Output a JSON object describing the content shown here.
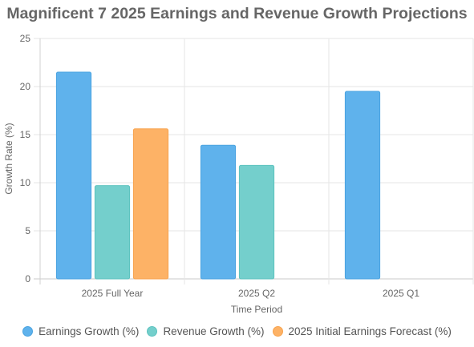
{
  "chart_data": {
    "type": "bar",
    "title": "Magnificent 7 2025 Earnings and Revenue Growth Projections",
    "xlabel": "Time Period",
    "ylabel": "Growth Rate (%)",
    "categories": [
      "2025 Full Year",
      "2025 Q2",
      "2025 Q1"
    ],
    "ylim": [
      0,
      25
    ],
    "yticks": [
      0,
      5,
      10,
      15,
      20,
      25
    ],
    "grid": true,
    "legend_position": "bottom",
    "series": [
      {
        "name": "Earnings Growth (%)",
        "values": [
          21.5,
          13.9,
          19.5
        ],
        "color": "#5fb2ec",
        "border": "#4aa3e0"
      },
      {
        "name": "Revenue Growth (%)",
        "values": [
          9.7,
          11.8,
          null
        ],
        "color": "#74cfcc",
        "border": "#5cc2bf"
      },
      {
        "name": "2025 Initial Earnings Forecast (%)",
        "values": [
          15.6,
          null,
          null
        ],
        "color": "#fdb266",
        "border": "#f8a34e"
      }
    ]
  }
}
